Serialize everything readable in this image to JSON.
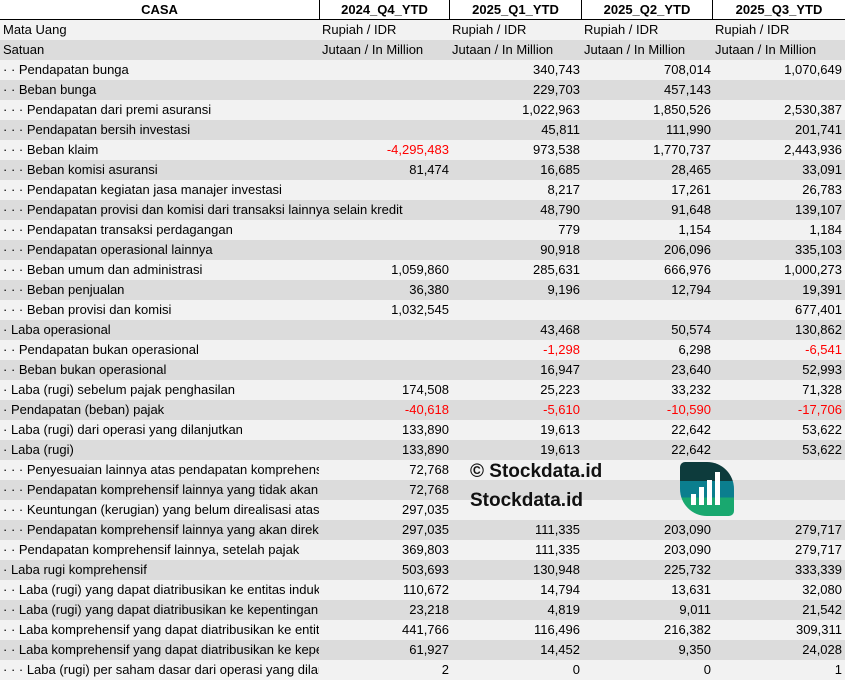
{
  "header": {
    "title": "CASA",
    "periods": [
      "2024_Q4_YTD",
      "2025_Q1_YTD",
      "2025_Q2_YTD",
      "2025_Q3_YTD"
    ]
  },
  "meta_rows": [
    {
      "label": "Mata Uang",
      "values": [
        "Rupiah / IDR",
        "Rupiah / IDR",
        "Rupiah / IDR",
        "Rupiah / IDR"
      ]
    },
    {
      "label": "Satuan",
      "values": [
        "Jutaan / In Million",
        "Jutaan / In Million",
        "Jutaan / In Million",
        "Jutaan / In Million"
      ]
    }
  ],
  "rows": [
    {
      "label": "· · Pendapatan bunga",
      "values": [
        "",
        "340,743",
        "708,014",
        "1,070,649"
      ]
    },
    {
      "label": "· · Beban bunga",
      "values": [
        "",
        "229,703",
        "457,143",
        ""
      ]
    },
    {
      "label": "· · · Pendapatan dari premi asuransi",
      "values": [
        "",
        "1,022,963",
        "1,850,526",
        "2,530,387"
      ]
    },
    {
      "label": "· · · Pendapatan bersih investasi",
      "values": [
        "",
        "45,811",
        "111,990",
        "201,741"
      ]
    },
    {
      "label": "· · · Beban klaim",
      "values": [
        "-4,295,483",
        "973,538",
        "1,770,737",
        "2,443,936"
      ]
    },
    {
      "label": "· · · Beban komisi asuransi",
      "values": [
        "81,474",
        "16,685",
        "28,465",
        "33,091"
      ]
    },
    {
      "label": "· · · Pendapatan kegiatan jasa manajer investasi",
      "values": [
        "",
        "8,217",
        "17,261",
        "26,783"
      ]
    },
    {
      "label": "· · · Pendapatan provisi dan komisi dari transaksi lainnya selain kredit",
      "values": [
        "",
        "48,790",
        "91,648",
        "139,107"
      ]
    },
    {
      "label": "· · · Pendapatan transaksi perdagangan",
      "values": [
        "",
        "779",
        "1,154",
        "1,184"
      ]
    },
    {
      "label": "· · · Pendapatan operasional lainnya",
      "values": [
        "",
        "90,918",
        "206,096",
        "335,103"
      ]
    },
    {
      "label": "· · · Beban umum dan administrasi",
      "values": [
        "1,059,860",
        "285,631",
        "666,976",
        "1,000,273"
      ]
    },
    {
      "label": "· · · Beban penjualan",
      "values": [
        "36,380",
        "9,196",
        "12,794",
        "19,391"
      ]
    },
    {
      "label": "· · · Beban provisi dan komisi",
      "values": [
        "1,032,545",
        "",
        "",
        "677,401"
      ]
    },
    {
      "label": "· Laba operasional",
      "values": [
        "",
        "43,468",
        "50,574",
        "130,862"
      ]
    },
    {
      "label": "· · Pendapatan bukan operasional",
      "values": [
        "",
        "-1,298",
        "6,298",
        "-6,541"
      ]
    },
    {
      "label": "· · Beban bukan operasional",
      "values": [
        "",
        "16,947",
        "23,640",
        "52,993"
      ]
    },
    {
      "label": "· Laba (rugi) sebelum pajak penghasilan",
      "values": [
        "174,508",
        "25,223",
        "33,232",
        "71,328"
      ]
    },
    {
      "label": "· Pendapatan (beban) pajak",
      "values": [
        "-40,618",
        "-5,610",
        "-10,590",
        "-17,706"
      ]
    },
    {
      "label": "· Laba (rugi) dari operasi yang dilanjutkan",
      "values": [
        "133,890",
        "19,613",
        "22,642",
        "53,622"
      ]
    },
    {
      "label": "· Laba (rugi)",
      "values": [
        "133,890",
        "19,613",
        "22,642",
        "53,622"
      ]
    },
    {
      "label": "· · · Penyesuaian lainnya atas pendapatan komprehensif",
      "values": [
        "72,768",
        "",
        "",
        ""
      ]
    },
    {
      "label": "· · · Pendapatan komprehensif lainnya yang tidak akan direklasifikasi",
      "values": [
        "72,768",
        "",
        "",
        ""
      ]
    },
    {
      "label": "· · · Keuntungan (kerugian) yang belum direalisasi atas",
      "values": [
        "297,035",
        "",
        "",
        ""
      ]
    },
    {
      "label": "· · · Pendapatan komprehensif lainnya yang akan direklasifikasi",
      "values": [
        "297,035",
        "111,335",
        "203,090",
        "279,717"
      ]
    },
    {
      "label": "· · Pendapatan komprehensif lainnya, setelah pajak",
      "values": [
        "369,803",
        "111,335",
        "203,090",
        "279,717"
      ]
    },
    {
      "label": "· Laba rugi komprehensif",
      "values": [
        "503,693",
        "130,948",
        "225,732",
        "333,339"
      ]
    },
    {
      "label": "· · Laba (rugi) yang dapat diatribusikan ke entitas induk",
      "values": [
        "110,672",
        "14,794",
        "13,631",
        "32,080"
      ]
    },
    {
      "label": "· · Laba (rugi) yang dapat diatribusikan ke kepentingan",
      "values": [
        "23,218",
        "4,819",
        "9,011",
        "21,542"
      ]
    },
    {
      "label": "· · Laba komprehensif yang dapat diatribusikan ke entitas induk",
      "values": [
        "441,766",
        "116,496",
        "216,382",
        "309,311"
      ]
    },
    {
      "label": "· · Laba komprehensif yang dapat diatribusikan ke kepentingan",
      "values": [
        "61,927",
        "14,452",
        "9,350",
        "24,028"
      ]
    },
    {
      "label": "· · · Laba (rugi) per saham dasar dari operasi yang dilanjutkan",
      "values": [
        "2",
        "0",
        "0",
        "1"
      ]
    }
  ],
  "colors": {
    "negative": "#ff0000",
    "row_light": "#f2f2f2",
    "row_dark": "#dcdcdc",
    "logo_dark": "#0d3b3c",
    "logo_teal": "#0b7e8e",
    "logo_green": "#19a86f"
  },
  "watermark": {
    "logo_text": "Stockdata.id",
    "copyright": "© Stockdata.id"
  }
}
